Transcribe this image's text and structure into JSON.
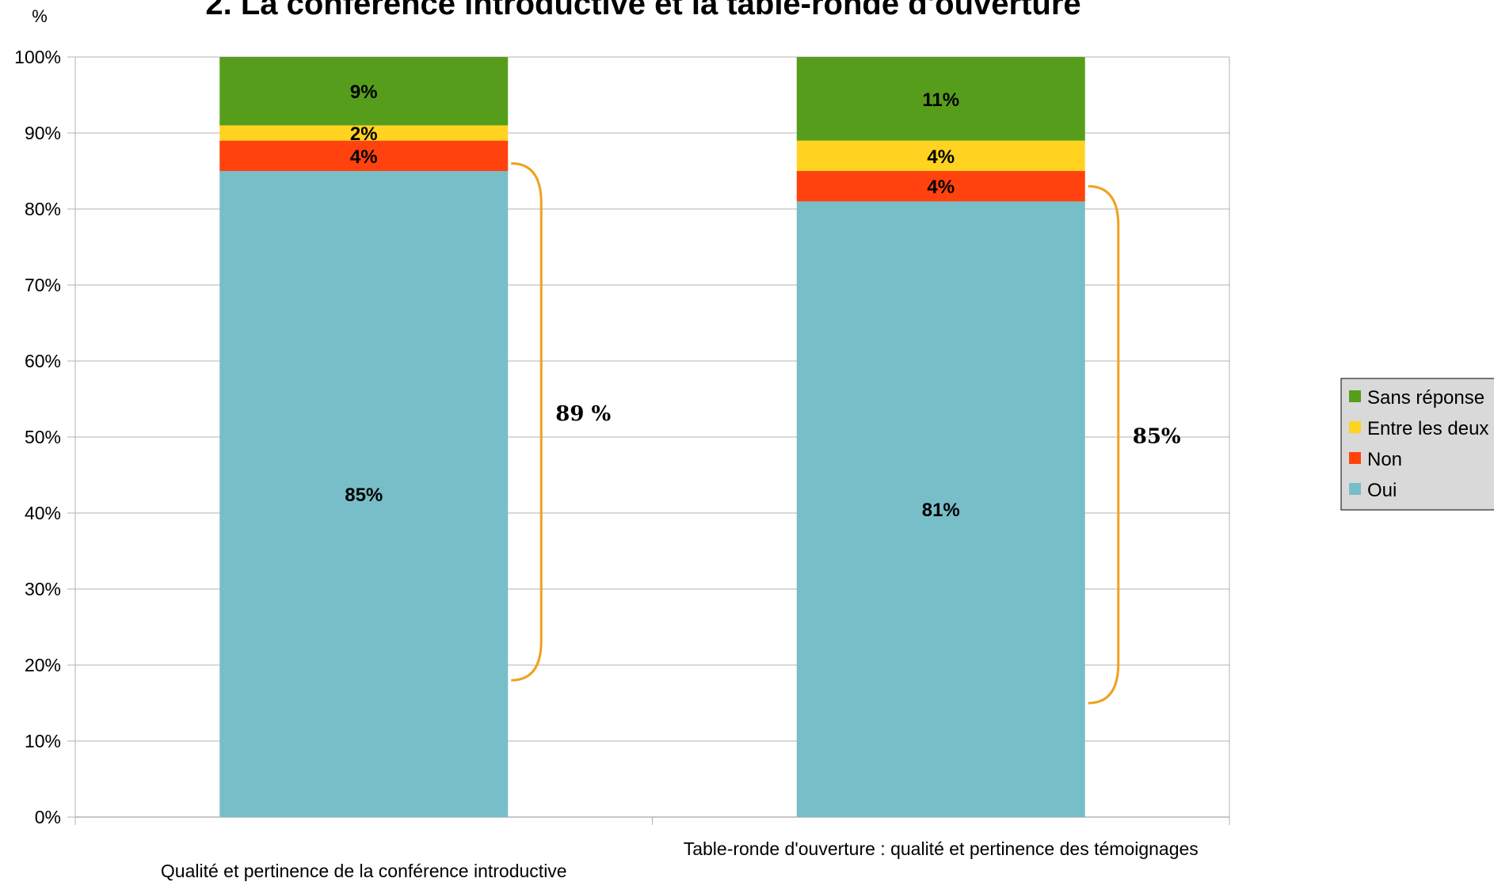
{
  "chart_data": {
    "type": "bar",
    "stacked": true,
    "title": "2. La conférence introductive et la table-ronde d'ouverture",
    "ylabel": "%",
    "xlabel": "",
    "ylim": [
      0,
      100
    ],
    "yticks": [
      "0%",
      "10%",
      "20%",
      "30%",
      "40%",
      "50%",
      "60%",
      "70%",
      "80%",
      "90%",
      "100%"
    ],
    "grid": true,
    "legend_position": "right",
    "categories": [
      "Qualité et pertinence de la conférence introductive",
      "Table-ronde d'ouverture : qualité et pertinence des témoignages"
    ],
    "series": [
      {
        "name": "Oui",
        "color": "#78bec9",
        "values": [
          85,
          81
        ],
        "labels": [
          "85%",
          "81%"
        ]
      },
      {
        "name": "Non",
        "color": "#ff420e",
        "values": [
          4,
          4
        ],
        "labels": [
          "4%",
          "4%"
        ]
      },
      {
        "name": "Entre les deux",
        "color": "#ffd320",
        "values": [
          2,
          4
        ],
        "labels": [
          "2%",
          "4%"
        ]
      },
      {
        "name": "Sans réponse",
        "color": "#579d1c",
        "values": [
          9,
          11
        ],
        "labels": [
          "9%",
          "11%"
        ]
      }
    ],
    "annotations": [
      {
        "category": 0,
        "from": 18,
        "to": 86,
        "label": "89 %"
      },
      {
        "category": 1,
        "from": 15,
        "to": 83,
        "label": "85%"
      }
    ],
    "bracket_color": "#f0a020"
  }
}
